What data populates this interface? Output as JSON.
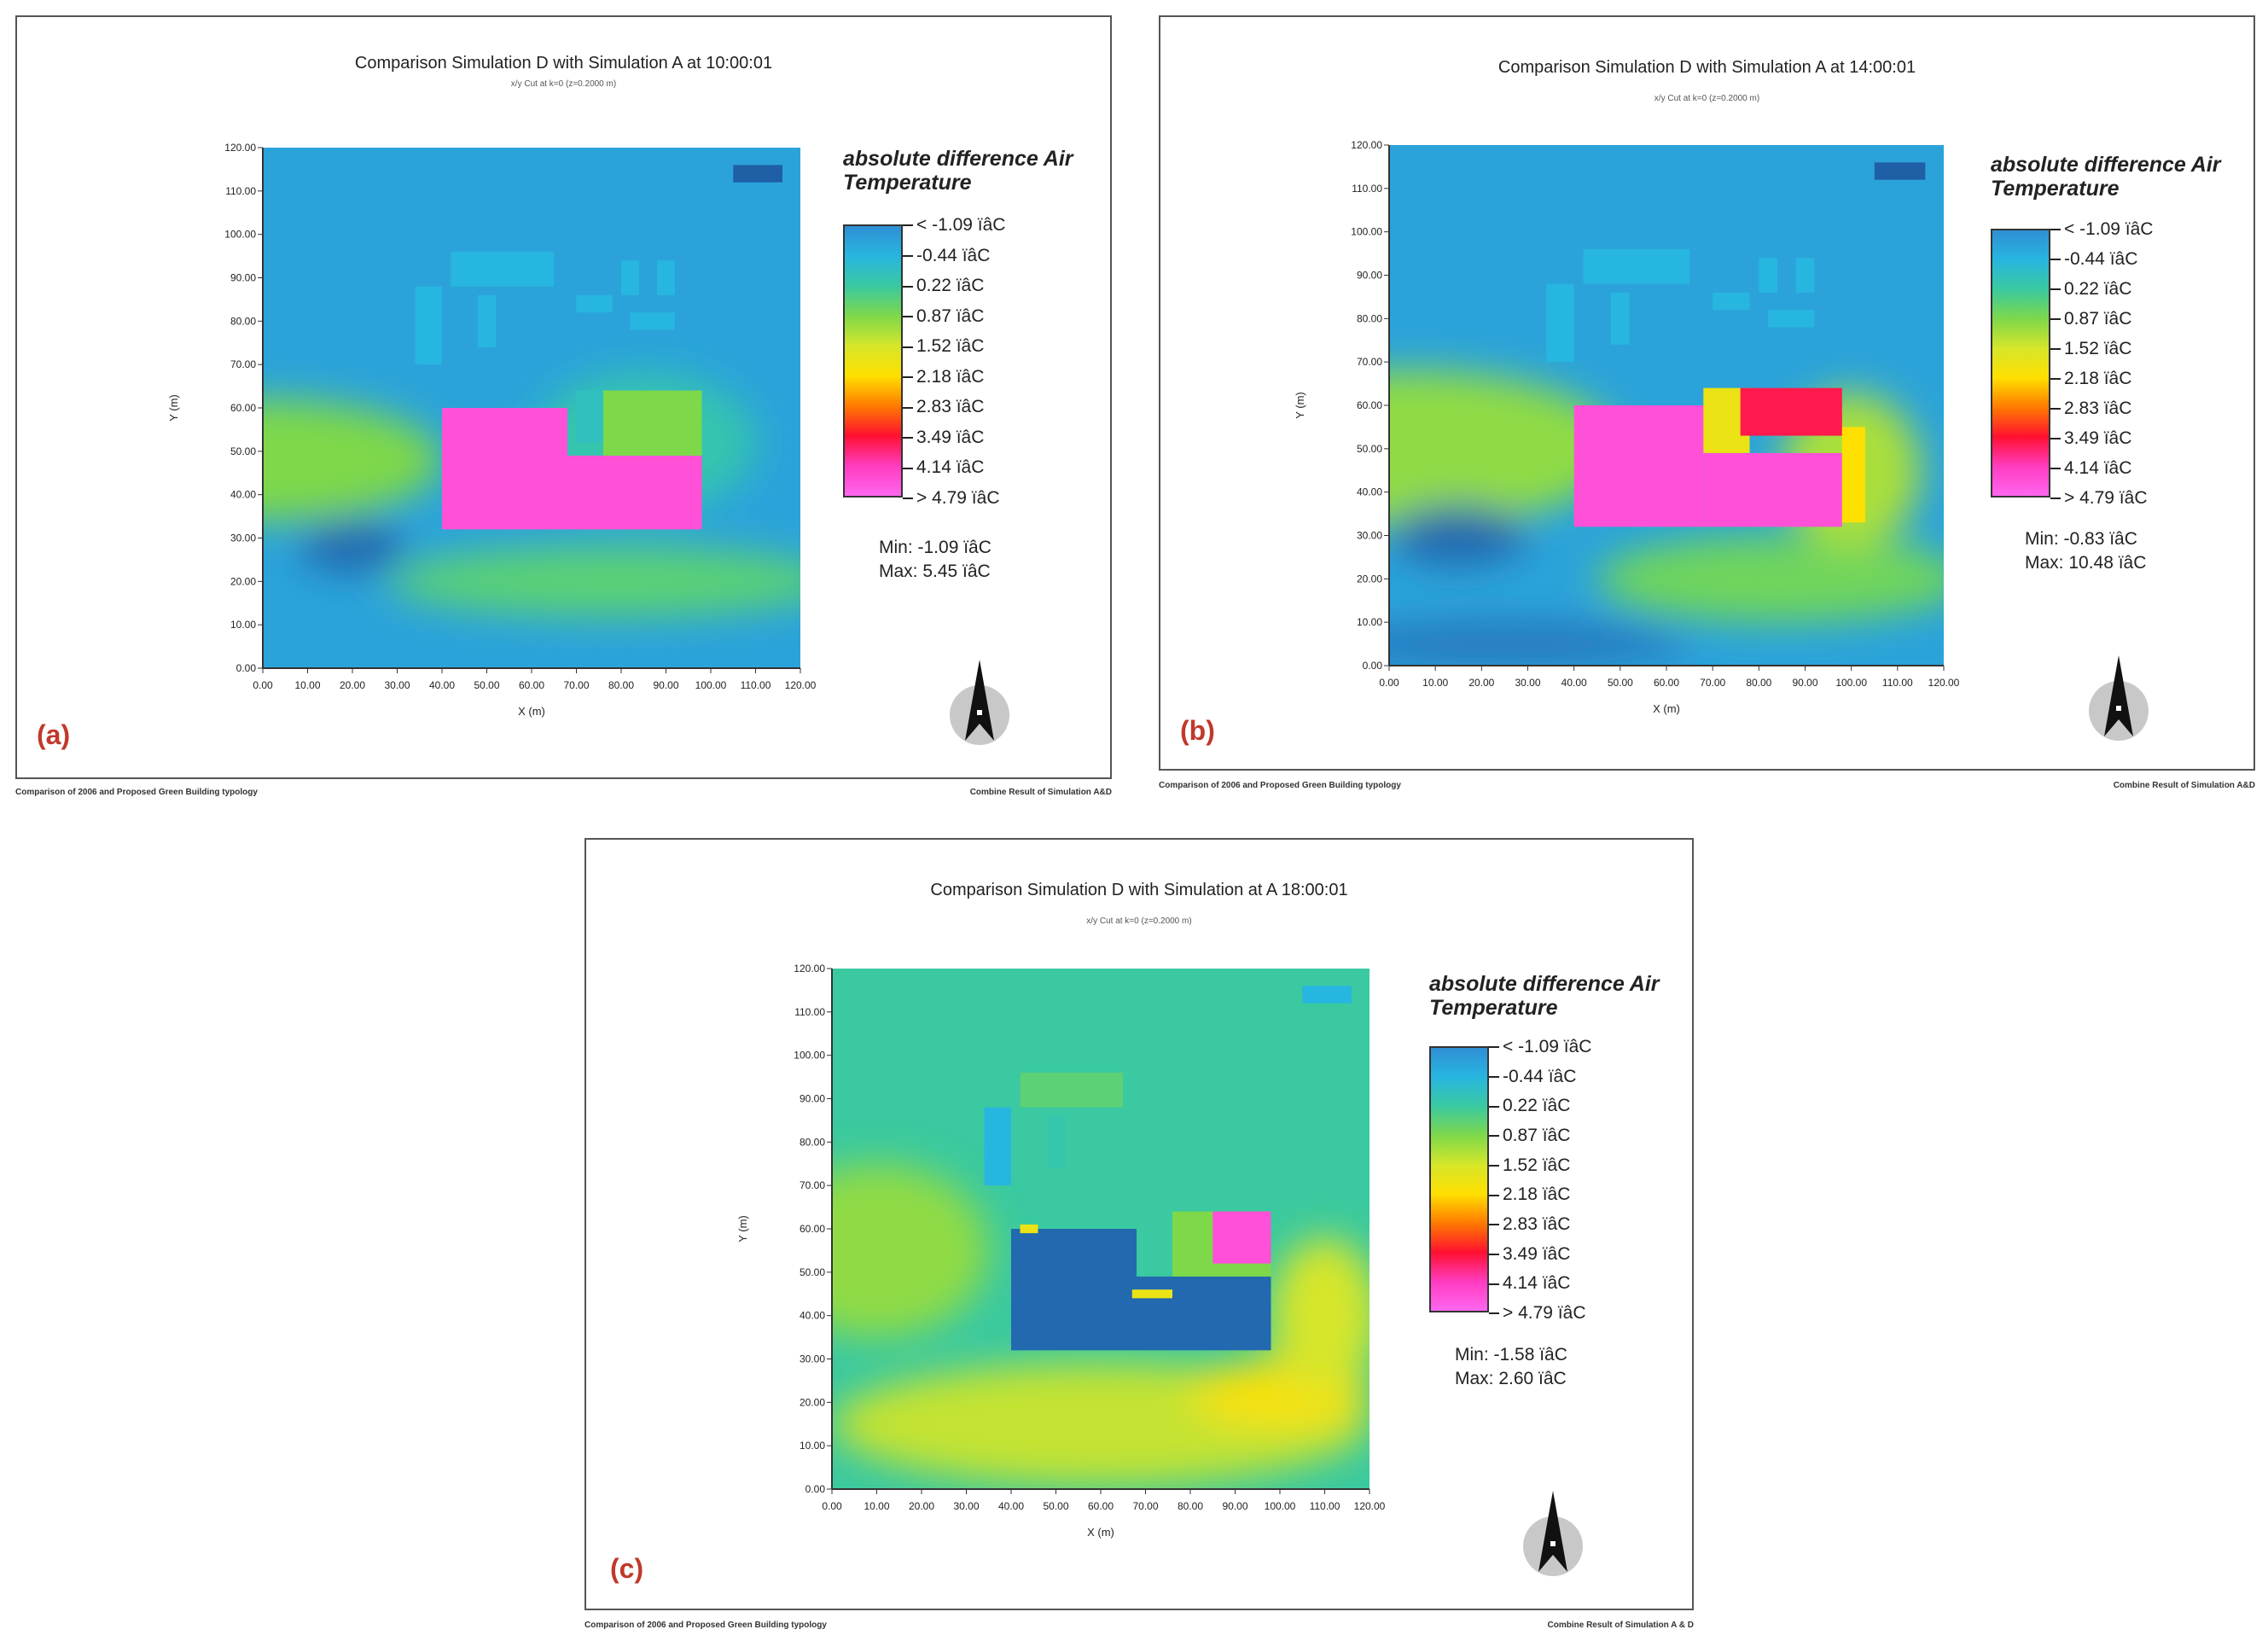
{
  "colors": {
    "scale": [
      "#1f5fa6",
      "#2f8fd4",
      "#27b6e0",
      "#3ac9a0",
      "#7ed84a",
      "#d6e62a",
      "#ffe000",
      "#ff7a00",
      "#ff1030",
      "#ff3cc0",
      "#ff66f0"
    ]
  },
  "chart_data": [
    {
      "id": "a",
      "type": "heatmap",
      "title": "Comparison Simulation D with Simulation A at 10:00:01",
      "subtitle": "x/y Cut at k=0 (z=0.2000 m)",
      "panel_label": "(a)",
      "xlabel": "X (m)",
      "ylabel": "Y (m)",
      "xlim": [
        0,
        120
      ],
      "ylim": [
        0,
        120
      ],
      "x_ticks": [
        "0.00",
        "10.00",
        "20.00",
        "30.00",
        "40.00",
        "50.00",
        "60.00",
        "70.00",
        "80.00",
        "90.00",
        "100.00",
        "110.00",
        "120.00"
      ],
      "y_ticks": [
        "0.00",
        "10.00",
        "20.00",
        "30.00",
        "40.00",
        "50.00",
        "60.00",
        "70.00",
        "80.00",
        "90.00",
        "100.00",
        "110.00",
        "120.00"
      ],
      "legend_title": "absolute difference Air Temperature",
      "legend_labels": [
        "< -1.09 ïâC",
        "-0.44  ïâC",
        "0.22  ïâC",
        "0.87  ïâC",
        "1.52  ïâC",
        "2.18  ïâC",
        "2.83  ïâC",
        "3.49  ïâC",
        "4.14  ïâC",
        "> 4.79 ïâC"
      ],
      "min_label": "Min: -1.09 ïâC",
      "max_label": "Max: 5.45 ïâC",
      "min": -1.09,
      "max": 5.45,
      "background_level": 0.15,
      "fields": [
        {
          "cx": 0,
          "cy": 48,
          "rx": 40,
          "ry": 14,
          "level": 0.4
        },
        {
          "cx": 78,
          "cy": 20,
          "rx": 50,
          "ry": 8,
          "level": 0.35
        },
        {
          "cx": 85,
          "cy": 52,
          "rx": 25,
          "ry": 16,
          "level": 0.28
        },
        {
          "cx": 20,
          "cy": 28,
          "rx": 12,
          "ry": 6,
          "level": 0.02
        }
      ],
      "blocks": [
        {
          "x0": 40,
          "y0": 32,
          "x1": 68,
          "y1": 60,
          "level": 0.95
        },
        {
          "x0": 68,
          "y0": 32,
          "x1": 98,
          "y1": 49,
          "level": 0.95
        },
        {
          "x0": 76,
          "y0": 49,
          "x1": 98,
          "y1": 64,
          "level": 0.4
        },
        {
          "x0": 70,
          "y0": 52,
          "x1": 76,
          "y1": 64,
          "level": 0.25
        },
        {
          "x0": 42,
          "y0": 88,
          "x1": 65,
          "y1": 96,
          "level": 0.2
        },
        {
          "x0": 34,
          "y0": 70,
          "x1": 40,
          "y1": 88,
          "level": 0.2
        },
        {
          "x0": 48,
          "y0": 74,
          "x1": 52,
          "y1": 86,
          "level": 0.2
        },
        {
          "x0": 80,
          "y0": 86,
          "x1": 84,
          "y1": 94,
          "level": 0.2
        },
        {
          "x0": 88,
          "y0": 86,
          "x1": 92,
          "y1": 94,
          "level": 0.2
        },
        {
          "x0": 70,
          "y0": 82,
          "x1": 78,
          "y1": 86,
          "level": 0.2
        },
        {
          "x0": 82,
          "y0": 78,
          "x1": 92,
          "y1": 82,
          "level": 0.2
        },
        {
          "x0": 105,
          "y0": 112,
          "x1": 116,
          "y1": 116,
          "level": 0.0
        }
      ]
    },
    {
      "id": "b",
      "type": "heatmap",
      "title": "Comparison Simulation D with Simulation A at 14:00:01",
      "subtitle": "x/y Cut at k=0 (z=0.2000 m)",
      "panel_label": "(b)",
      "xlabel": "X (m)",
      "ylabel": "Y (m)",
      "xlim": [
        0,
        120
      ],
      "ylim": [
        0,
        120
      ],
      "x_ticks": [
        "0.00",
        "10.00",
        "20.00",
        "30.00",
        "40.00",
        "50.00",
        "60.00",
        "70.00",
        "80.00",
        "90.00",
        "100.00",
        "110.00",
        "120.00"
      ],
      "y_ticks": [
        "0.00",
        "10.00",
        "20.00",
        "30.00",
        "40.00",
        "50.00",
        "60.00",
        "70.00",
        "80.00",
        "90.00",
        "100.00",
        "110.00",
        "120.00"
      ],
      "legend_title": "absolute difference Air Temperature",
      "legend_labels": [
        "< -1.09 ïâC",
        "-0.44  ïâC",
        "0.22  ïâC",
        "0.87  ïâC",
        "1.52  ïâC",
        "2.18  ïâC",
        "2.83  ïâC",
        "3.49  ïâC",
        "4.14  ïâC",
        "> 4.79 ïâC"
      ],
      "min_label": "Min: -0.83 ïâC",
      "max_label": "Max: 10.48 ïâC",
      "min": -0.83,
      "max": 10.48,
      "background_level": 0.15,
      "fields": [
        {
          "cx": 5,
          "cy": 50,
          "rx": 45,
          "ry": 18,
          "level": 0.42
        },
        {
          "cx": 85,
          "cy": 20,
          "rx": 40,
          "ry": 10,
          "level": 0.38
        },
        {
          "cx": 100,
          "cy": 45,
          "rx": 15,
          "ry": 18,
          "level": 0.45
        },
        {
          "cx": 15,
          "cy": 30,
          "rx": 15,
          "ry": 7,
          "level": 0.02
        },
        {
          "cx": 25,
          "cy": 5,
          "rx": 40,
          "ry": 5,
          "level": 0.05
        }
      ],
      "blocks": [
        {
          "x0": 40,
          "y0": 32,
          "x1": 68,
          "y1": 60,
          "level": 0.95
        },
        {
          "x0": 68,
          "y0": 32,
          "x1": 98,
          "y1": 49,
          "level": 0.95
        },
        {
          "x0": 68,
          "y0": 49,
          "x1": 78,
          "y1": 64,
          "level": 0.55
        },
        {
          "x0": 76,
          "y0": 53,
          "x1": 98,
          "y1": 64,
          "level": 0.82
        },
        {
          "x0": 98,
          "y0": 33,
          "x1": 103,
          "y1": 55,
          "level": 0.6
        },
        {
          "x0": 42,
          "y0": 88,
          "x1": 65,
          "y1": 96,
          "level": 0.2
        },
        {
          "x0": 34,
          "y0": 70,
          "x1": 40,
          "y1": 88,
          "level": 0.2
        },
        {
          "x0": 48,
          "y0": 74,
          "x1": 52,
          "y1": 86,
          "level": 0.2
        },
        {
          "x0": 80,
          "y0": 86,
          "x1": 84,
          "y1": 94,
          "level": 0.2
        },
        {
          "x0": 88,
          "y0": 86,
          "x1": 92,
          "y1": 94,
          "level": 0.2
        },
        {
          "x0": 70,
          "y0": 82,
          "x1": 78,
          "y1": 86,
          "level": 0.2
        },
        {
          "x0": 82,
          "y0": 78,
          "x1": 92,
          "y1": 82,
          "level": 0.2
        },
        {
          "x0": 105,
          "y0": 112,
          "x1": 116,
          "y1": 116,
          "level": 0.0
        }
      ]
    },
    {
      "id": "c",
      "type": "heatmap",
      "title": "Comparison Simulation D with Simulation at A 18:00:01",
      "subtitle": "x/y Cut at k=0 (z=0.2000 m)",
      "panel_label": "(c)",
      "xlabel": "X (m)",
      "ylabel": "Y (m)",
      "xlim": [
        0,
        120
      ],
      "ylim": [
        0,
        120
      ],
      "x_ticks": [
        "0.00",
        "10.00",
        "20.00",
        "30.00",
        "40.00",
        "50.00",
        "60.00",
        "70.00",
        "80.00",
        "90.00",
        "100.00",
        "110.00",
        "120.00"
      ],
      "y_ticks": [
        "0.00",
        "10.00",
        "20.00",
        "30.00",
        "40.00",
        "50.00",
        "60.00",
        "70.00",
        "80.00",
        "90.00",
        "100.00",
        "110.00",
        "120.00"
      ],
      "legend_title": "absolute difference Air Temperature",
      "legend_labels": [
        "< -1.09 ïâC",
        "-0.44  ïâC",
        "0.22  ïâC",
        "0.87  ïâC",
        "1.52  ïâC",
        "2.18  ïâC",
        "2.83  ïâC",
        "3.49  ïâC",
        "4.14  ïâC",
        "> 4.79 ïâC"
      ],
      "min_label": "Min: -1.58 ïâC",
      "max_label": "Max: 2.60 ïâC",
      "min": -1.58,
      "max": 2.6,
      "background_level": 0.3,
      "fields": [
        {
          "cx": 60,
          "cy": 15,
          "rx": 60,
          "ry": 14,
          "level": 0.48
        },
        {
          "cx": 100,
          "cy": 22,
          "rx": 20,
          "ry": 8,
          "level": 0.58
        },
        {
          "cx": 110,
          "cy": 40,
          "rx": 12,
          "ry": 18,
          "level": 0.5
        },
        {
          "cx": 10,
          "cy": 55,
          "rx": 25,
          "ry": 20,
          "level": 0.42
        }
      ],
      "blocks": [
        {
          "x0": 40,
          "y0": 32,
          "x1": 68,
          "y1": 60,
          "level": 0.02
        },
        {
          "x0": 68,
          "y0": 32,
          "x1": 98,
          "y1": 49,
          "level": 0.02
        },
        {
          "x0": 76,
          "y0": 49,
          "x1": 98,
          "y1": 64,
          "level": 0.4
        },
        {
          "x0": 85,
          "y0": 52,
          "x1": 98,
          "y1": 64,
          "level": 0.95
        },
        {
          "x0": 67,
          "y0": 44,
          "x1": 76,
          "y1": 46,
          "level": 0.55
        },
        {
          "x0": 42,
          "y0": 59,
          "x1": 46,
          "y1": 61,
          "level": 0.55
        },
        {
          "x0": 42,
          "y0": 88,
          "x1": 65,
          "y1": 96,
          "level": 0.35
        },
        {
          "x0": 34,
          "y0": 70,
          "x1": 40,
          "y1": 88,
          "level": 0.2
        },
        {
          "x0": 48,
          "y0": 74,
          "x1": 52,
          "y1": 86,
          "level": 0.28
        },
        {
          "x0": 105,
          "y0": 112,
          "x1": 116,
          "y1": 116,
          "level": 0.2
        }
      ]
    }
  ],
  "footers": {
    "left": "Comparison of 2006 and Proposed Green Building typology",
    "right_ab": "Combine Result of Simulation A&D",
    "right_c": "Combine Result of Simulation A & D"
  }
}
